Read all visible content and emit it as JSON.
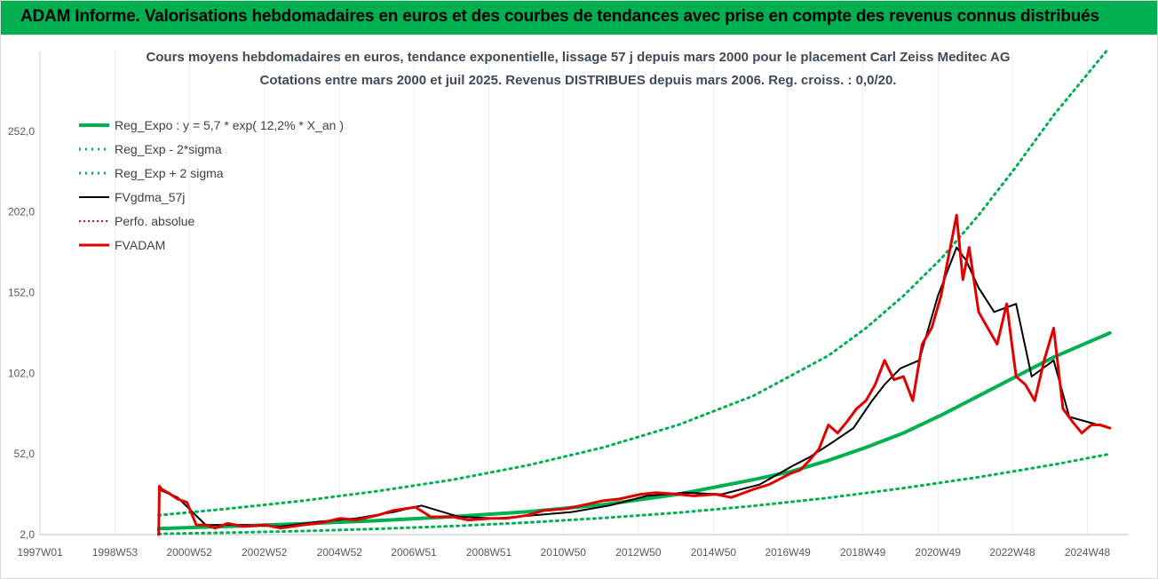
{
  "banner": {
    "text": "ADAM Informe. Valorisations hebdomadaires en euros et des courbes de tendances avec prise en compte des revenus connus distribués"
  },
  "colors": {
    "banner": "#00b050",
    "reg": "#00b050",
    "fvgdma": "#000000",
    "fvadam": "#e00000",
    "perfo": "#ff0000"
  },
  "chart_data": {
    "type": "line",
    "title": "Cours moyens hebdomadaires en euros, tendance exponentielle, lissage 57 j depuis mars 2000 pour le placement Carl Zeiss Meditec AG",
    "subtitle": "Cotations entre mars 2000 et juil 2025. Revenus DISTRIBUES depuis mars 2006. Reg. croiss. : 0,0/20.",
    "x_axis": {
      "type": "date",
      "range": [
        "1997-01-01",
        "2025-12-31"
      ],
      "tick_labels": [
        "1997W01",
        "1998W53",
        "2000W52",
        "2002W52",
        "2004W52",
        "2006W51",
        "2008W51",
        "2010W50",
        "2012W50",
        "2014W50",
        "2016W49",
        "2018W49",
        "2020W49",
        "2022W48",
        "2024W48"
      ]
    },
    "y_axis": {
      "range": [
        2,
        302
      ],
      "tick_labels": [
        "2,0",
        "52,0",
        "102,0",
        "152,0",
        "202,0",
        "252,0"
      ],
      "ticks": [
        2,
        52,
        102,
        152,
        202,
        252
      ]
    },
    "grid": "vertical",
    "legend": {
      "position": "top-left",
      "entries": [
        {
          "label": "Reg_Expo : y = 5,7 * exp( 12,2% *  X_an )",
          "color": "#00b050",
          "style": "solid-thick"
        },
        {
          "label": "Reg_Exp - 2*sigma",
          "color": "#00b050",
          "style": "dotted"
        },
        {
          "label": "Reg_Exp + 2 sigma",
          "color": "#00b050",
          "style": "dotted"
        },
        {
          "label": "FVgdma_57j",
          "color": "#000000",
          "style": "solid"
        },
        {
          "label": "Perfo. absolue",
          "color": "#ff0000",
          "style": "dotted"
        },
        {
          "label": "FVADAM",
          "color": "#e00000",
          "style": "solid-thick"
        }
      ]
    },
    "series": [
      {
        "name": "Reg_Expo : y = 5,7 * exp( 12,2% *  X_an )",
        "x": [
          "2000-03-01",
          "2002-01-01",
          "2004-01-01",
          "2006-01-01",
          "2008-01-01",
          "2010-01-01",
          "2012-01-01",
          "2014-01-01",
          "2016-01-01",
          "2017-01-01",
          "2018-01-01",
          "2019-01-01",
          "2020-01-01",
          "2021-01-01",
          "2022-01-01",
          "2023-01-01",
          "2024-01-01",
          "2025-07-01"
        ],
        "values": [
          5.7,
          7.1,
          8.7,
          10.7,
          13.1,
          16.2,
          20.5,
          27,
          36,
          41,
          48,
          56,
          65,
          76,
          88,
          100,
          112,
          127
        ]
      },
      {
        "name": "Reg_Exp - 2*sigma",
        "x": [
          "2000-03-01",
          "2002-01-01",
          "2004-01-01",
          "2006-01-01",
          "2008-01-01",
          "2010-01-01",
          "2012-01-01",
          "2014-01-01",
          "2016-01-01",
          "2018-01-01",
          "2020-01-01",
          "2022-01-01",
          "2024-01-01",
          "2025-07-01"
        ],
        "values": [
          2.5,
          3.2,
          4.2,
          5.6,
          7.3,
          9.5,
          12.3,
          15.6,
          19.8,
          24.8,
          30.8,
          37.6,
          45.4,
          52
        ]
      },
      {
        "name": "Reg_Exp + 2 sigma",
        "x": [
          "2000-03-01",
          "2002-01-01",
          "2004-01-01",
          "2006-01-01",
          "2008-01-01",
          "2010-01-01",
          "2012-01-01",
          "2014-01-01",
          "2016-01-01",
          "2018-01-01",
          "2019-01-01",
          "2020-01-01",
          "2021-01-01",
          "2022-01-01",
          "2023-01-01",
          "2024-01-01",
          "2025-06-01"
        ],
        "values": [
          14,
          18,
          23,
          29,
          36,
          45,
          56,
          70,
          88,
          113,
          130,
          150,
          173,
          200,
          230,
          262,
          302
        ]
      },
      {
        "name": "FVgdma_57j",
        "x": [
          "2000-03-01",
          "2000-09-01",
          "2001-06-01",
          "2002-06-01",
          "2003-06-01",
          "2004-06-01",
          "2005-06-01",
          "2006-06-01",
          "2007-03-01",
          "2008-03-01",
          "2009-03-01",
          "2010-03-01",
          "2011-03-01",
          "2012-03-01",
          "2013-03-01",
          "2014-03-01",
          "2015-03-01",
          "2016-03-01",
          "2017-01-01",
          "2017-07-01",
          "2018-03-01",
          "2018-09-01",
          "2019-03-01",
          "2019-07-01",
          "2019-12-01",
          "2020-06-01",
          "2020-12-01",
          "2021-06-01",
          "2021-09-01",
          "2022-01-01",
          "2022-06-01",
          "2023-01-01",
          "2023-06-01",
          "2024-01-01",
          "2024-06-01",
          "2025-07-01"
        ],
        "values": [
          30,
          25,
          8,
          8,
          7,
          10,
          12,
          16,
          20,
          13,
          12,
          14,
          16,
          20,
          26,
          28,
          27,
          33,
          44,
          50,
          60,
          68,
          85,
          95,
          105,
          110,
          150,
          180,
          172,
          155,
          140,
          145,
          100,
          110,
          75,
          68
        ]
      },
      {
        "name": "Perfo. absolue",
        "x": [],
        "values": []
      },
      {
        "name": "FVADAM",
        "x": [
          "2000-03-01",
          "2000-03-08",
          "2000-04-01",
          "2000-06-01",
          "2000-09-01",
          "2000-12-01",
          "2001-03-01",
          "2001-06-01",
          "2001-09-01",
          "2002-01-01",
          "2002-06-01",
          "2003-01-01",
          "2003-06-01",
          "2004-01-01",
          "2004-06-01",
          "2005-01-01",
          "2005-06-01",
          "2006-01-01",
          "2006-06-01",
          "2007-01-01",
          "2007-06-01",
          "2008-01-01",
          "2008-06-01",
          "2009-01-01",
          "2009-06-01",
          "2010-01-01",
          "2010-06-01",
          "2011-01-01",
          "2011-06-01",
          "2012-01-01",
          "2012-06-01",
          "2013-01-01",
          "2013-06-01",
          "2014-01-01",
          "2014-06-01",
          "2015-01-01",
          "2015-06-01",
          "2016-01-01",
          "2016-06-01",
          "2017-01-01",
          "2017-04-01",
          "2017-07-01",
          "2017-10-01",
          "2018-01-01",
          "2018-04-01",
          "2018-07-01",
          "2018-10-01",
          "2019-01-01",
          "2019-04-01",
          "2019-07-01",
          "2019-10-01",
          "2020-01-01",
          "2020-04-01",
          "2020-07-01",
          "2020-10-01",
          "2021-01-01",
          "2021-03-01",
          "2021-06-01",
          "2021-08-01",
          "2021-10-01",
          "2022-01-01",
          "2022-04-01",
          "2022-07-01",
          "2022-10-01",
          "2023-01-01",
          "2023-04-01",
          "2023-07-01",
          "2023-10-01",
          "2024-01-01",
          "2024-04-01",
          "2024-07-01",
          "2024-10-01",
          "2025-01-01",
          "2025-04-01",
          "2025-07-01"
        ],
        "values": [
          2,
          32,
          30,
          28,
          24,
          22,
          8,
          8,
          6,
          9,
          7,
          8,
          6,
          8,
          9,
          12,
          11,
          14,
          17,
          19,
          13,
          13,
          11,
          12,
          12,
          14,
          17,
          18,
          20,
          23,
          24,
          27,
          28,
          27,
          26,
          27,
          25,
          30,
          33,
          40,
          42,
          48,
          55,
          70,
          65,
          72,
          80,
          85,
          95,
          110,
          98,
          100,
          85,
          120,
          130,
          150,
          170,
          200,
          160,
          180,
          140,
          130,
          120,
          145,
          100,
          95,
          85,
          110,
          130,
          80,
          72,
          65,
          70,
          70,
          68
        ]
      }
    ]
  }
}
